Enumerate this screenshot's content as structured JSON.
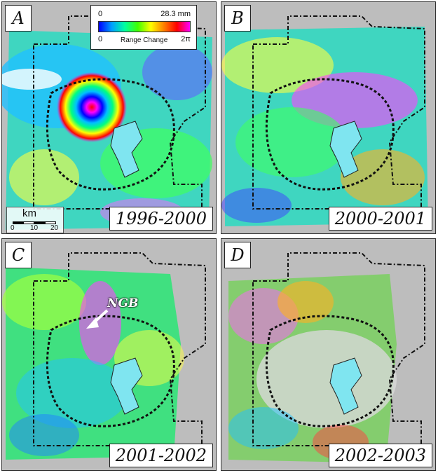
{
  "legend": {
    "title": "Range Change",
    "range_min": "0",
    "range_max_mm": "28.3 mm",
    "phase_min": "0",
    "phase_max": "2π"
  },
  "scale": {
    "unit": "km",
    "ticks": [
      "0",
      "10",
      "20"
    ]
  },
  "panels": [
    {
      "letter": "A",
      "period": "1996-2000"
    },
    {
      "letter": "B",
      "period": "2000-2001"
    },
    {
      "letter": "C",
      "period": "2001-2002",
      "annotation": "NGB"
    },
    {
      "letter": "D",
      "period": "2002-2003"
    }
  ],
  "colors": {
    "park_boundary": "#111111",
    "caldera_rim": "#111111",
    "lake": "#7fe5f0",
    "shaded_relief": "#bdbdbd"
  }
}
